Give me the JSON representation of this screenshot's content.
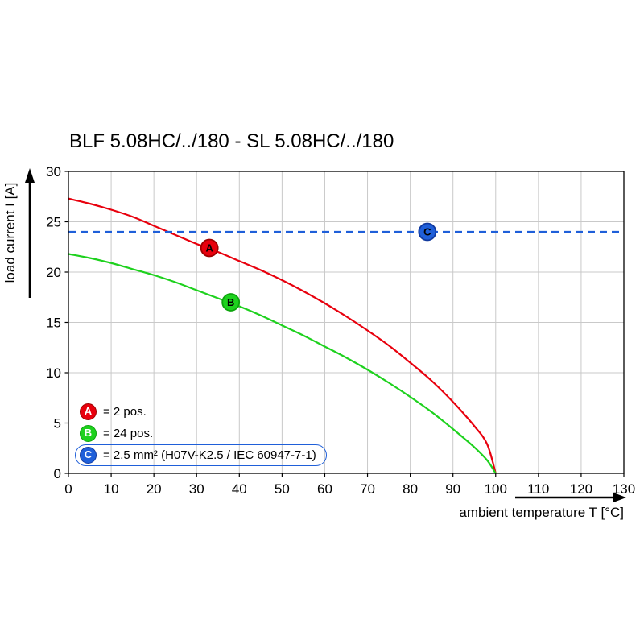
{
  "chart_data": {
    "type": "line",
    "title": "BLF 5.08HC/../180 - SL 5.08HC/../180",
    "xlabel": "ambient temperature T [°C]",
    "ylabel": "load current I [A]",
    "xlim": [
      0,
      130
    ],
    "ylim": [
      0,
      30
    ],
    "xticks": [
      0,
      10,
      20,
      30,
      40,
      50,
      60,
      70,
      80,
      90,
      100,
      110,
      120,
      130
    ],
    "yticks": [
      0,
      5,
      10,
      15,
      20,
      25,
      30
    ],
    "grid": true,
    "grid_color": "#c9c9c9",
    "legend_position": "bottom-left-inside",
    "series": [
      {
        "name": "A",
        "legend_label": "= 2 pos.",
        "kind": "curve",
        "color": "#e8000d",
        "marker_stroke": "#9e0000",
        "points": [
          [
            0,
            27.3
          ],
          [
            5,
            26.8
          ],
          [
            10,
            26.2
          ],
          [
            15,
            25.5
          ],
          [
            20,
            24.6
          ],
          [
            25,
            23.7
          ],
          [
            30,
            22.8
          ],
          [
            35,
            22.0
          ],
          [
            40,
            21.1
          ],
          [
            45,
            20.2
          ],
          [
            50,
            19.2
          ],
          [
            55,
            18.1
          ],
          [
            60,
            16.9
          ],
          [
            65,
            15.6
          ],
          [
            70,
            14.2
          ],
          [
            75,
            12.7
          ],
          [
            80,
            11.0
          ],
          [
            85,
            9.2
          ],
          [
            90,
            7.1
          ],
          [
            95,
            4.7
          ],
          [
            98,
            2.9
          ],
          [
            100,
            0
          ]
        ],
        "marker": {
          "x": 33,
          "y": 22.4
        }
      },
      {
        "name": "B",
        "legend_label": "= 24 pos.",
        "kind": "curve",
        "color": "#1ed11e",
        "marker_stroke": "#0da50d",
        "points": [
          [
            0,
            21.8
          ],
          [
            5,
            21.4
          ],
          [
            10,
            20.9
          ],
          [
            15,
            20.3
          ],
          [
            20,
            19.7
          ],
          [
            25,
            19.0
          ],
          [
            30,
            18.2
          ],
          [
            35,
            17.4
          ],
          [
            40,
            16.6
          ],
          [
            45,
            15.7
          ],
          [
            50,
            14.7
          ],
          [
            55,
            13.7
          ],
          [
            60,
            12.6
          ],
          [
            65,
            11.5
          ],
          [
            70,
            10.3
          ],
          [
            75,
            9.0
          ],
          [
            80,
            7.6
          ],
          [
            85,
            6.1
          ],
          [
            90,
            4.4
          ],
          [
            95,
            2.6
          ],
          [
            98,
            1.3
          ],
          [
            100,
            0
          ]
        ],
        "marker": {
          "x": 38,
          "y": 17.0
        }
      },
      {
        "name": "C",
        "legend_label": "= 2.5 mm² (H07V-K2.5 / IEC 60947-7-1)",
        "kind": "hline",
        "y": 24,
        "color": "#1f5fd9",
        "marker_stroke": "#11399e",
        "dash": "9 6",
        "boxed_in_legend": true,
        "marker": {
          "x": 84,
          "y": 24
        }
      }
    ]
  }
}
